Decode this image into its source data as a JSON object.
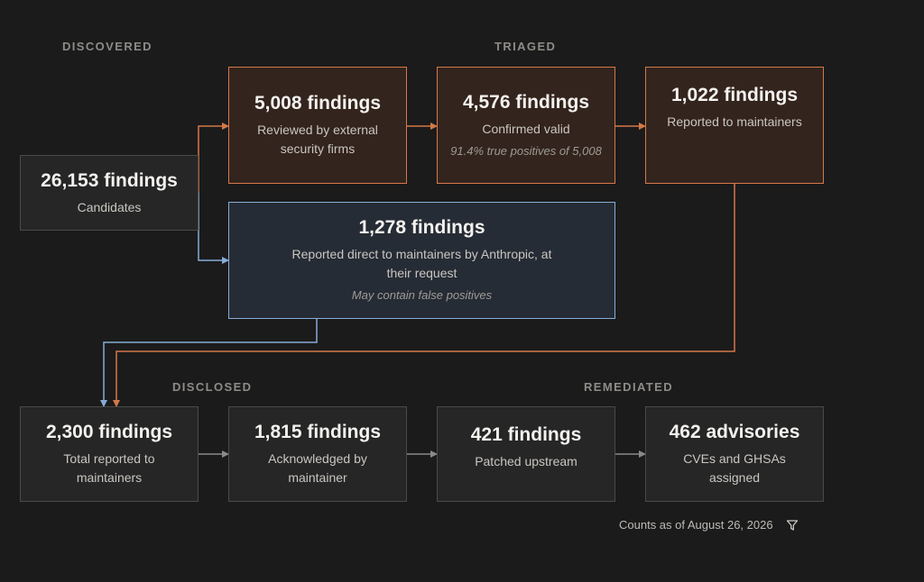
{
  "sections": {
    "discovered": "DISCOVERED",
    "triaged": "TRIAGED",
    "disclosed": "DISCLOSED",
    "remediated": "REMEDIATED"
  },
  "nodes": {
    "candidates": {
      "count": "26,153 findings",
      "desc": "Candidates"
    },
    "reviewed": {
      "count": "5,008 findings",
      "desc": "Reviewed by external security firms"
    },
    "confirmed": {
      "count": "4,576 findings",
      "desc": "Confirmed valid",
      "note": "91.4% true positives of 5,008"
    },
    "reported_maintainers": {
      "count": "1,022 findings",
      "desc": "Reported to maintainers"
    },
    "reported_direct": {
      "count": "1,278 findings",
      "desc": "Reported direct to maintainers by Anthropic, at their request",
      "note": "May contain false positives"
    },
    "total_reported": {
      "count": "2,300 findings",
      "desc": "Total reported to maintainers"
    },
    "acknowledged": {
      "count": "1,815 findings",
      "desc": "Acknowledged by maintainer"
    },
    "patched": {
      "count": "421 findings",
      "desc": "Patched upstream"
    },
    "advisories": {
      "count": "462 advisories",
      "desc": "CVEs and GHSAs assigned"
    }
  },
  "footer": {
    "text": "Counts as of August 26, 2026",
    "icon": "filter-icon"
  },
  "colors": {
    "background": "#1b1b1b",
    "orange_accent": "#d4784a",
    "blue_accent": "#86acd6",
    "gray_connector": "#8a8a8a"
  }
}
